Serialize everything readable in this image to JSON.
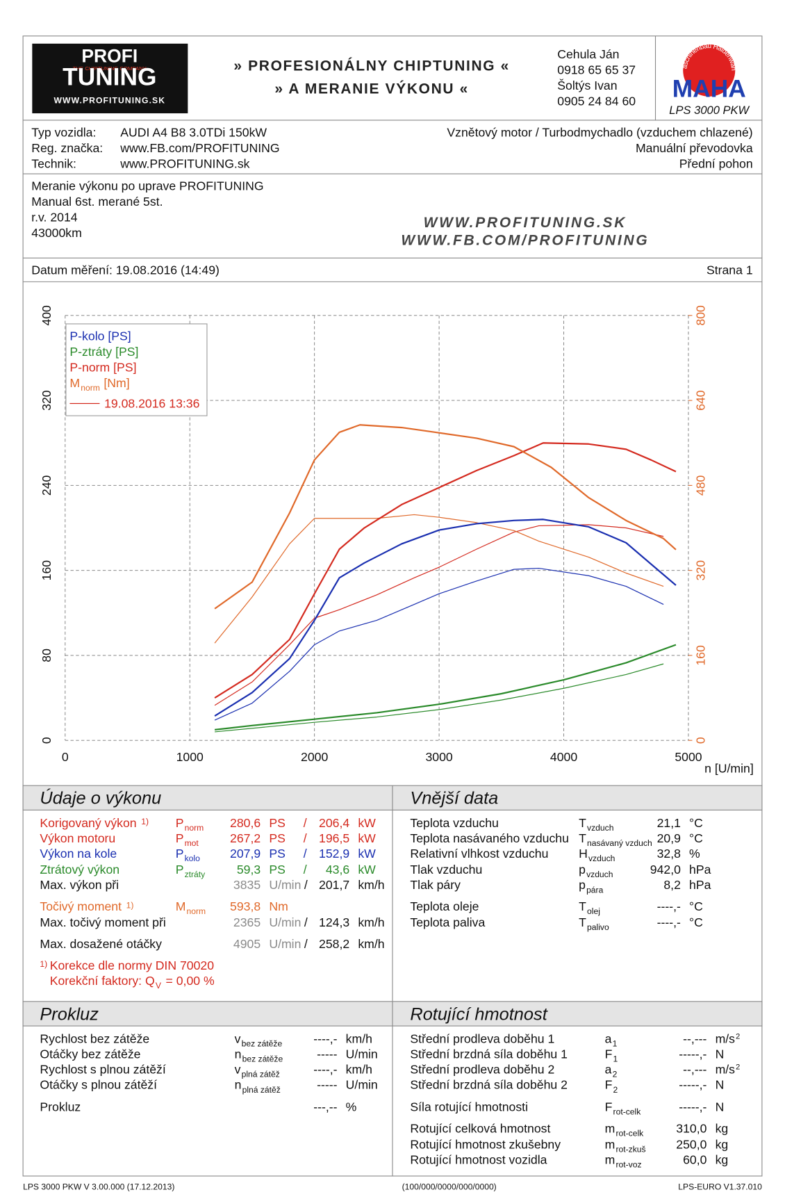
{
  "header": {
    "logo_top": "PROFI",
    "logo_tag": "THE CHIPTUNING COMPANY",
    "logo_bottom": "TUNING",
    "logo_url": "WWW.PROFITUNING.SK",
    "slogan_1": "» PROFESIONÁLNY CHIPTUNING «",
    "slogan_2": "» A MERANIE VÝKONU «",
    "contacts": [
      "Cehula Ján",
      "0918 65 65 37",
      "Šoltýs Ivan",
      "0905 24 84 60"
    ],
    "maha_ring": "Maschinenbau Haldenwang",
    "maha": "MAHA",
    "model": "LPS 3000 PKW"
  },
  "vehicle": {
    "rows": [
      [
        "Typ vozidla:",
        "AUDI A4 B8 3.0TDi 150kW",
        "Vznětový motor / Turbodmychadlo (vzduchem chlazené)"
      ],
      [
        "Reg. značka:",
        "www.FB.com/PROFITUNING",
        "Manuální převodovka"
      ],
      [
        "Technik:",
        "www.PROFITUNING.sk",
        "Přední pohon"
      ]
    ]
  },
  "notes": {
    "lines": [
      "Meranie výkonu po uprave PROFITUNING",
      "Manual 6st. merané 5st.",
      "r.v. 2014",
      "43000km"
    ],
    "urls": [
      "WWW.PROFITUNING.SK",
      "WWW.FB.COM/PROFITUNING"
    ]
  },
  "date": {
    "label": "Datum měření: 19.08.2016 (14:49)",
    "page": "Strana 1"
  },
  "chart_data": {
    "type": "line",
    "xlabel": "n [U/min]",
    "xlim": [
      0,
      5000
    ],
    "xticks": [
      0,
      1000,
      2000,
      3000,
      4000,
      5000
    ],
    "ylim": [
      0,
      400
    ],
    "yticks": [
      0,
      80,
      160,
      240,
      320,
      400
    ],
    "y2lim": [
      0,
      800
    ],
    "y2ticks": [
      0,
      160,
      320,
      480,
      640,
      800
    ],
    "y2color": "#e0692a",
    "grid": true,
    "legend": "upper left",
    "series": [
      {
        "name": "P-kolo [PS]",
        "color": "#1a2fb0",
        "x": [
          1200,
          1500,
          1800,
          2000,
          2200,
          2400,
          2700,
          3000,
          3300,
          3600,
          3835,
          4200,
          4500,
          4700,
          4900
        ],
        "values": [
          23,
          45,
          77,
          113,
          153,
          167,
          185,
          198,
          204,
          207,
          208,
          201,
          186,
          166,
          146
        ]
      },
      {
        "name": "P-ztráty [PS]",
        "color": "#2a8a2a",
        "x": [
          1200,
          1500,
          2000,
          2500,
          3000,
          3500,
          4000,
          4500,
          4900
        ],
        "values": [
          10,
          14,
          20,
          26,
          34,
          44,
          57,
          73,
          90
        ]
      },
      {
        "name": "P-norm [PS]",
        "color": "#d42a1f",
        "x": [
          1200,
          1500,
          1800,
          2000,
          2200,
          2400,
          2700,
          3000,
          3300,
          3600,
          3835,
          4200,
          4500,
          4700,
          4900
        ],
        "values": [
          40,
          62,
          95,
          138,
          180,
          200,
          222,
          238,
          254,
          268,
          280,
          279,
          274,
          264,
          253
        ]
      },
      {
        "name": "M",
        "name_sub": "norm",
        "name_unit": "[Nm]",
        "color": "#e0692a",
        "axis": "y2",
        "x": [
          1200,
          1500,
          1800,
          2000,
          2200,
          2365,
          2700,
          3000,
          3300,
          3600,
          3900,
          4200,
          4500,
          4800,
          4900
        ],
        "values": [
          248,
          298,
          428,
          528,
          580,
          594,
          589,
          579,
          569,
          553,
          514,
          457,
          414,
          380,
          359
        ]
      }
    ],
    "comparison": {
      "name": "19.08.2016 13:36",
      "color": "#d42a1f",
      "series": [
        {
          "color": "#1a2fb0",
          "x": [
            1200,
            1500,
            1800,
            2000,
            2200,
            2500,
            2800,
            3000,
            3300,
            3600,
            3800,
            4200,
            4500,
            4800
          ],
          "values": [
            19,
            35,
            65,
            90,
            103,
            113,
            128,
            138,
            150,
            161,
            162,
            155,
            145,
            128
          ]
        },
        {
          "color": "#2a8a2a",
          "x": [
            1200,
            2000,
            2500,
            3000,
            3500,
            4000,
            4500,
            4800
          ],
          "values": [
            8,
            17,
            22,
            29,
            38,
            49,
            62,
            72
          ]
        },
        {
          "color": "#d42a1f",
          "x": [
            1200,
            1500,
            1800,
            2000,
            2200,
            2500,
            2800,
            3000,
            3300,
            3600,
            3800,
            4200,
            4500,
            4800
          ],
          "values": [
            33,
            55,
            90,
            115,
            123,
            137,
            153,
            163,
            180,
            196,
            202,
            203,
            200,
            192
          ]
        },
        {
          "color": "#e0692a",
          "axis": "y2",
          "x": [
            1200,
            1500,
            1800,
            2000,
            2200,
            2500,
            2800,
            3000,
            3300,
            3600,
            3800,
            4200,
            4500,
            4800
          ],
          "values": [
            183,
            270,
            370,
            418,
            418,
            418,
            425,
            420,
            410,
            395,
            375,
            345,
            315,
            290
          ]
        }
      ]
    }
  },
  "performance": {
    "title": "Údaje o výkonu",
    "rows": [
      {
        "label": "Korigovaný výkon",
        "note": "1)",
        "sym": "P",
        "sub": "norm",
        "v1": "280,6",
        "u1": "PS",
        "sep": "/",
        "v2": "206,4",
        "u2": "kW",
        "color": "#d42a1f"
      },
      {
        "label": "Výkon motoru",
        "sym": "P",
        "sub": "mot",
        "v1": "267,2",
        "u1": "PS",
        "sep": "/",
        "v2": "196,5",
        "u2": "kW",
        "color": "#d42a1f"
      },
      {
        "label": "Výkon na kole",
        "sym": "P",
        "sub": "kolo",
        "v1": "207,9",
        "u1": "PS",
        "sep": "/",
        "v2": "152,9",
        "u2": "kW",
        "color": "#1a2fb0"
      },
      {
        "label": "Ztrátový výkon",
        "sym": "P",
        "sub": "ztráty",
        "v1": "59,3",
        "u1": "PS",
        "sep": "/",
        "v2": "43,6",
        "u2": "kW",
        "color": "#2a8a2a"
      },
      {
        "label": "Max. výkon při",
        "v1": "3835",
        "u1": "U/min",
        "sep": "/",
        "v2": "201,7",
        "u2": "km/h",
        "color": "#111111",
        "value_color": "#8a8a8a"
      },
      {
        "label": "Točivý moment",
        "note": "1)",
        "sym": "M",
        "sub": "norm",
        "v1": "593,8",
        "u1": "Nm",
        "color": "#e0692a"
      },
      {
        "label": "Max. točivý moment při",
        "v1": "2365",
        "u1": "U/min",
        "sep": "/",
        "v2": "124,3",
        "u2": "km/h",
        "color": "#111111",
        "value_color": "#8a8a8a"
      },
      {
        "label": "Max. dosažené otáčky",
        "v1": "4905",
        "u1": "U/min",
        "sep": "/",
        "v2": "258,2",
        "u2": "km/h",
        "color": "#111111",
        "value_color": "#8a8a8a"
      }
    ],
    "footnote": {
      "mark": "1)",
      "text": "Korekce dle normy DIN 70020",
      "factor_label": "Korekční faktory: Q",
      "factor_sub": "V",
      "factor_value": "=   0,00 %"
    }
  },
  "external": {
    "title": "Vnější data",
    "rows": [
      {
        "label": "Teplota vzduchu",
        "sym": "T",
        "sub": "vzduch",
        "value": "21,1",
        "unit": "°C"
      },
      {
        "label": "Teplota nasávaného vzduchu",
        "sym": "T",
        "sub": "nasávaný vzduch",
        "value": "20,9",
        "unit": "°C"
      },
      {
        "label": "Relativní vlhkost vzduchu",
        "sym": "H",
        "sub": "vzduch",
        "value": "32,8",
        "unit": "%"
      },
      {
        "label": "Tlak vzduchu",
        "sym": "p",
        "sub": "vzduch",
        "value": "942,0",
        "unit": "hPa"
      },
      {
        "label": "Tlak páry",
        "sym": "p",
        "sub": "pára",
        "value": "8,2",
        "unit": "hPa"
      },
      {
        "label": "Teplota oleje",
        "sym": "T",
        "sub": "olej",
        "value": "----,-",
        "unit": "°C"
      },
      {
        "label": "Teplota paliva",
        "sym": "T",
        "sub": "palivo",
        "value": "----,-",
        "unit": "°C"
      }
    ]
  },
  "slip": {
    "title": "Prokluz",
    "rows": [
      {
        "label": "Rychlost bez zátěže",
        "sym": "v",
        "sub": "bez zátěže",
        "value": "----,-",
        "unit": "km/h"
      },
      {
        "label": "Otáčky bez zátěže",
        "sym": "n",
        "sub": "bez zátěže",
        "value": "-----",
        "unit": "U/min"
      },
      {
        "label": "Rychlost s plnou zátěží",
        "sym": "v",
        "sub": "plná zátěž",
        "value": "----,-",
        "unit": "km/h"
      },
      {
        "label": "Otáčky s plnou zátěží",
        "sym": "n",
        "sub": "plná zátěž",
        "value": "-----",
        "unit": "U/min"
      },
      {
        "label": "Prokluz",
        "value": "---,--",
        "unit": "%"
      }
    ]
  },
  "rotating": {
    "title": "Rotující hmotnost",
    "rows": [
      {
        "label": "Střední prodleva doběhu 1",
        "sym": "a",
        "sub": "1",
        "value": "--,---",
        "unit": "m/s",
        "unit_sup": "2"
      },
      {
        "label": "Střední brzdná síla doběhu 1",
        "sym": "F",
        "sub": "1",
        "value": "-----,-",
        "unit": "N"
      },
      {
        "label": "Střední prodleva doběhu 2",
        "sym": "a",
        "sub": "2",
        "value": "--,---",
        "unit": "m/s",
        "unit_sup": "2"
      },
      {
        "label": "Střední brzdná síla doběhu 2",
        "sym": "F",
        "sub": "2",
        "value": "-----,-",
        "unit": "N"
      },
      {
        "label": "Síla rotující hmotnosti",
        "sym": "F",
        "sub": "rot-celk",
        "value": "-----,-",
        "unit": "N"
      },
      {
        "label": "Rotující celková hmotnost",
        "sym": "m",
        "sub": "rot-celk",
        "value": "310,0",
        "unit": "kg"
      },
      {
        "label": "Rotující hmotnost zkušebny",
        "sym": "m",
        "sub": "rot-zkuš",
        "value": "250,0",
        "unit": "kg"
      },
      {
        "label": "Rotující hmotnost vozidla",
        "sym": "m",
        "sub": "rot-voz",
        "value": "60,0",
        "unit": "kg"
      }
    ]
  },
  "footer": {
    "left": "LPS 3000 PKW V 3.00.000 (17.12.2013)",
    "center": "(100/000/0000/000/0000)",
    "right": "LPS-EURO V1.37.010"
  }
}
